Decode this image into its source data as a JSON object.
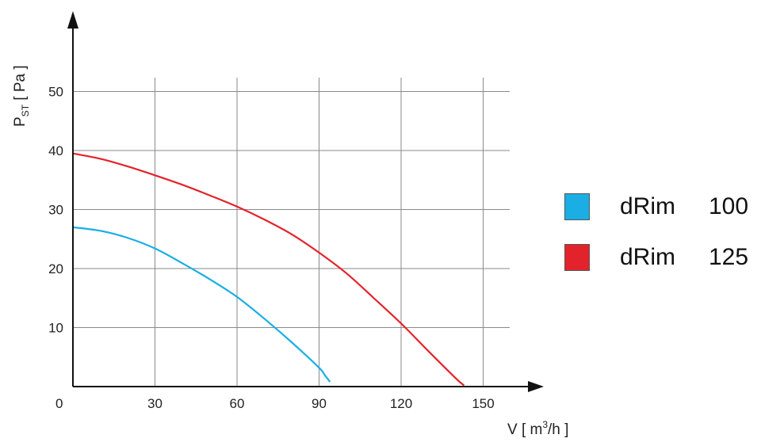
{
  "chart_data": {
    "type": "line",
    "xlabel_prefix": "V [ m",
    "xlabel_sup": "3",
    "xlabel_suffix": "/h ]",
    "ylabel_main": "P",
    "ylabel_sub": "ST",
    "ylabel_unit": " [ Pa ]",
    "origin_label": "0",
    "xlim": [
      0,
      155
    ],
    "ylim": [
      0,
      50
    ],
    "x_ticks": [
      30,
      60,
      90,
      120,
      150
    ],
    "y_ticks": [
      10,
      20,
      30,
      40,
      50
    ],
    "grid": true,
    "legend_position": "right",
    "series": [
      {
        "name": "dRim",
        "size": "100",
        "color": "#1aaee5",
        "x": [
          0,
          10,
          20,
          30,
          40,
          50,
          60,
          70,
          80,
          90,
          92,
          94
        ],
        "y": [
          27.0,
          26.4,
          25.2,
          23.4,
          20.9,
          18.2,
          15.2,
          11.5,
          7.5,
          3.2,
          2.0,
          0.8
        ]
      },
      {
        "name": "dRim",
        "size": "125",
        "color": "#e3232b",
        "x": [
          0,
          10,
          20,
          30,
          40,
          50,
          60,
          70,
          80,
          90,
          100,
          110,
          120,
          130,
          140,
          143
        ],
        "y": [
          39.5,
          38.6,
          37.3,
          35.8,
          34.2,
          32.4,
          30.5,
          28.3,
          25.8,
          22.7,
          19.2,
          15.0,
          10.7,
          6.0,
          1.4,
          0.2
        ]
      }
    ]
  }
}
